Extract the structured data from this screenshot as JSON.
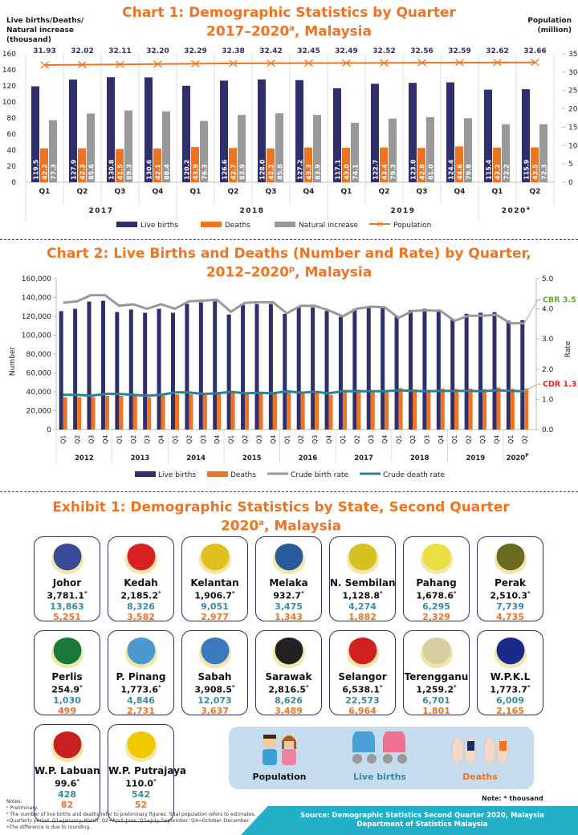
{
  "chart1": {
    "title_line1": "Chart 1: Demographic Statistics by Quarter",
    "title_line2": "2017–2020",
    "title_sup": "a",
    "title_suffix": ", Malaysia",
    "left_axis_title": [
      "Live births/Deaths/",
      "Natural increase",
      "(thousand)"
    ],
    "right_axis_title": [
      "Population",
      "(million)"
    ]
  },
  "chart2": {
    "title_line1": "Chart 2: Live Births and Deaths (Number and Rate) by Quarter,",
    "title_line2": "2012–2020",
    "title_sup": "p",
    "title_suffix": ", Malaysia"
  },
  "chart_data": [
    {
      "type": "bar",
      "title": "Chart 1: Demographic Statistics by Quarter 2017–2020a, Malaysia",
      "ylabel": "Live births/Deaths/Natural increase (thousand)",
      "y2label": "Population (million)",
      "ylim": [
        0,
        160
      ],
      "yticks": [
        0,
        20,
        40,
        60,
        80,
        100,
        120,
        140,
        160
      ],
      "y2lim": [
        0,
        35
      ],
      "y2ticks": [
        0,
        5,
        10,
        15,
        20,
        25,
        30,
        35
      ],
      "categories": [
        "Q1",
        "Q2",
        "Q3",
        "Q4",
        "Q1",
        "Q2",
        "Q3",
        "Q4",
        "Q1",
        "Q2",
        "Q3",
        "Q4",
        "Q1",
        "Q2"
      ],
      "groups": [
        {
          "label": "2017",
          "count": 4,
          "sup": ""
        },
        {
          "label": "2018",
          "count": 4,
          "sup": ""
        },
        {
          "label": "2019",
          "count": 4,
          "sup": ""
        },
        {
          "label": "2020",
          "count": 2,
          "sup": "a"
        }
      ],
      "series": [
        {
          "name": "Live births",
          "type": "bar",
          "color": "#2e2f6b",
          "values": [
            119.5,
            127.9,
            130.8,
            130.6,
            120.2,
            126.6,
            128.0,
            127.2,
            117.1,
            122.7,
            123.8,
            124.4,
            115.4,
            115.9
          ]
        },
        {
          "name": "Deaths",
          "type": "bar",
          "color": "#f07322",
          "values": [
            42.2,
            42.3,
            41.5,
            42.1,
            43.9,
            42.7,
            42.2,
            43.3,
            43.0,
            43.4,
            42.8,
            44.6,
            43.2,
            43.5
          ]
        },
        {
          "name": "Natural increase",
          "type": "bar",
          "color": "#999999",
          "values": [
            77.3,
            85.6,
            89.3,
            88.4,
            76.3,
            83.9,
            85.8,
            83.9,
            74.1,
            79.3,
            81.0,
            79.8,
            72.2,
            72.3
          ]
        },
        {
          "name": "Population",
          "type": "line",
          "axis": "right",
          "color": "#f07322",
          "values": [
            31.93,
            32.02,
            32.11,
            32.2,
            32.29,
            32.38,
            32.42,
            32.45,
            32.49,
            32.52,
            32.56,
            32.59,
            32.62,
            32.66
          ]
        }
      ],
      "legend": [
        "Live births",
        "Deaths",
        "Natural increase",
        "Population"
      ],
      "legend_position": "bottom"
    },
    {
      "type": "bar",
      "title": "Chart 2: Live Births and Deaths (Number and Rate) by Quarter, 2012–2020p, Malaysia",
      "ylabel": "Number",
      "y2label": "Rate",
      "ylim": [
        0,
        160000
      ],
      "yticks": [
        "0",
        "20,000",
        "40,000",
        "60,000",
        "80,000",
        "100,000",
        "120,000",
        "140,000",
        "160,000"
      ],
      "y2lim": [
        0,
        5
      ],
      "y2ticks": [
        "0.0",
        "1.0",
        "2.0",
        "3.0",
        "4.0",
        "5.0"
      ],
      "categories": [
        "Q1",
        "Q2",
        "Q3",
        "Q4",
        "Q1",
        "Q2",
        "Q3",
        "Q4",
        "Q1",
        "Q2",
        "Q3",
        "Q4",
        "Q1",
        "Q2",
        "Q3",
        "Q4",
        "Q1",
        "Q2",
        "Q3",
        "Q4",
        "Q1",
        "Q2",
        "Q3",
        "Q4",
        "Q1",
        "Q2",
        "Q3",
        "Q4",
        "Q1",
        "Q2",
        "Q3",
        "Q4",
        "Q1",
        "Q2"
      ],
      "groups": [
        {
          "label": "2012",
          "count": 4,
          "sup": ""
        },
        {
          "label": "2013",
          "count": 4,
          "sup": ""
        },
        {
          "label": "2014",
          "count": 4,
          "sup": ""
        },
        {
          "label": "2015",
          "count": 4,
          "sup": ""
        },
        {
          "label": "2016",
          "count": 4,
          "sup": ""
        },
        {
          "label": "2017",
          "count": 4,
          "sup": ""
        },
        {
          "label": "2018",
          "count": 4,
          "sup": ""
        },
        {
          "label": "2019",
          "count": 4,
          "sup": ""
        },
        {
          "label": "2020",
          "count": 2,
          "sup": "P"
        }
      ],
      "series": [
        {
          "name": "Live births",
          "type": "bar",
          "color": "#2e2f6b",
          "values": [
            125500,
            128000,
            135700,
            136500,
            124600,
            127200,
            123800,
            128000,
            123800,
            133200,
            134800,
            135900,
            122000,
            132300,
            133100,
            133200,
            122700,
            130000,
            129500,
            125700,
            119500,
            127900,
            130800,
            130600,
            120200,
            126600,
            128000,
            127200,
            117100,
            122700,
            123800,
            124400,
            115400,
            115900
          ]
        },
        {
          "name": "Deaths",
          "type": "bar",
          "color": "#f07322",
          "values": [
            34200,
            34300,
            34200,
            35800,
            35800,
            35900,
            34100,
            36000,
            37300,
            37400,
            36600,
            37500,
            38700,
            37800,
            37900,
            37900,
            39600,
            38200,
            38700,
            36700,
            42200,
            42300,
            41500,
            42100,
            43900,
            42700,
            42200,
            43300,
            43000,
            43400,
            42800,
            44600,
            43200,
            43500
          ]
        },
        {
          "name": "Crude birth rate",
          "type": "line",
          "axis": "right",
          "color": "#999999",
          "values": [
            4.2,
            4.25,
            4.45,
            4.45,
            4.1,
            4.15,
            4.0,
            4.15,
            4.0,
            4.25,
            4.27,
            4.3,
            3.9,
            4.2,
            4.22,
            4.22,
            3.85,
            4.1,
            4.1,
            3.95,
            3.75,
            4.0,
            4.07,
            4.05,
            3.7,
            3.93,
            3.95,
            3.93,
            3.6,
            3.77,
            3.77,
            3.8,
            3.52,
            3.52
          ]
        },
        {
          "name": "Crude death rate",
          "type": "line",
          "axis": "right",
          "color": "#2f7f96",
          "values": [
            1.15,
            1.15,
            1.12,
            1.18,
            1.18,
            1.15,
            1.12,
            1.15,
            1.23,
            1.23,
            1.18,
            1.2,
            1.25,
            1.2,
            1.22,
            1.2,
            1.27,
            1.22,
            1.25,
            1.2,
            1.27,
            1.27,
            1.27,
            1.27,
            1.3,
            1.28,
            1.27,
            1.28,
            1.28,
            1.28,
            1.27,
            1.3,
            1.28,
            1.27
          ]
        }
      ],
      "annotations": [
        {
          "text": "CBR 3.5",
          "color": "#6aaa3a"
        },
        {
          "text": "CDR 1.3",
          "color": "#e8202a"
        }
      ],
      "legend": [
        "Live births",
        "Deaths",
        "Crude birth rate",
        "Crude death rate"
      ],
      "legend_position": "bottom"
    }
  ],
  "exhibit": {
    "title_line1": "Exhibit 1: Demographic Statistics by State, Second Quarter",
    "title_line2": "2020",
    "title_sup": "a",
    "title_suffix": ", Malaysia",
    "states": [
      {
        "name": "Johor",
        "population": "3,781.1",
        "births": "13,863",
        "deaths": "5,251",
        "emblem_color": "#3a4a9a"
      },
      {
        "name": "Kedah",
        "population": "2,185.2",
        "births": "8,326",
        "deaths": "3,582",
        "emblem_color": "#d82020"
      },
      {
        "name": "Kelantan",
        "population": "1,906.7",
        "births": "9,051",
        "deaths": "2,977",
        "emblem_color": "#e0c020"
      },
      {
        "name": "Melaka",
        "population": "932.7",
        "births": "3,475",
        "deaths": "1,343",
        "emblem_color": "#2a5a9a"
      },
      {
        "name": "N. Sembilan",
        "population": "1,128.8",
        "births": "4,274",
        "deaths": "1,882",
        "emblem_color": "#d8c020"
      },
      {
        "name": "Pahang",
        "population": "1,678.6",
        "births": "6,295",
        "deaths": "2,329",
        "emblem_color": "#e8e040"
      },
      {
        "name": "Perak",
        "population": "2,510.3",
        "births": "7,739",
        "deaths": "4,735",
        "emblem_color": "#6a6a20"
      },
      {
        "name": "Perlis",
        "population": "254.9",
        "births": "1,030",
        "deaths": "499",
        "emblem_color": "#1a7a3a"
      },
      {
        "name": "P. Pinang",
        "population": "1,773.6",
        "births": "4,846",
        "deaths": "2,731",
        "emblem_color": "#4a9ad0"
      },
      {
        "name": "Sabah",
        "population": "3,908.5",
        "births": "12,073",
        "deaths": "3,637",
        "emblem_color": "#3a7ac0"
      },
      {
        "name": "Sarawak",
        "population": "2,816.5",
        "births": "8,626",
        "deaths": "3,489",
        "emblem_color": "#222222"
      },
      {
        "name": "Selangor",
        "population": "6,538.1",
        "births": "22,573",
        "deaths": "6,964",
        "emblem_color": "#d02020"
      },
      {
        "name": "Terengganu",
        "population": "1,259.2",
        "births": "6,701",
        "deaths": "1,801",
        "emblem_color": "#d8d0a0"
      },
      {
        "name": "W.P.K.L",
        "population": "1,773.7",
        "births": "6,009",
        "deaths": "2,165",
        "emblem_color": "#1a2a8a"
      },
      {
        "name": "W.P. Labuan",
        "population": "99.6",
        "births": "428",
        "deaths": "82",
        "emblem_color": "#c82020"
      },
      {
        "name": "W.P. Putrajaya",
        "population": "110.0",
        "births": "542",
        "deaths": "52",
        "emblem_color": "#f0c800"
      }
    ],
    "thousand_mark": "*",
    "legend": {
      "population": "Population",
      "live_births": "Live births",
      "deaths": "Deaths"
    },
    "note_thousand": "Note: * thousand"
  },
  "notes": {
    "heading": "Notes:",
    "lines": [
      "ᵖ Preliminary.",
      "ᵃ The number of live births and deaths refer to preliminary figures. Total population refers to estimates.",
      "•Quarterly period: Q1=January–March; Q2=April–June; Q3=July–September; Q4=October–December.",
      "•The difference is due to rounding."
    ]
  },
  "source": {
    "line1": "Source: Demographic Statistics Second Quarter 2020, Malaysia",
    "line2": "Department of Statistics Malaysia"
  },
  "colors": {
    "navy": "#2e2f6b",
    "orange": "#f07322",
    "grey": "#999999",
    "teal": "#2f7f96",
    "births_text": "#3a8aa0",
    "source_bg": "#22b0c8",
    "legend_bg": "#c5dcef"
  }
}
